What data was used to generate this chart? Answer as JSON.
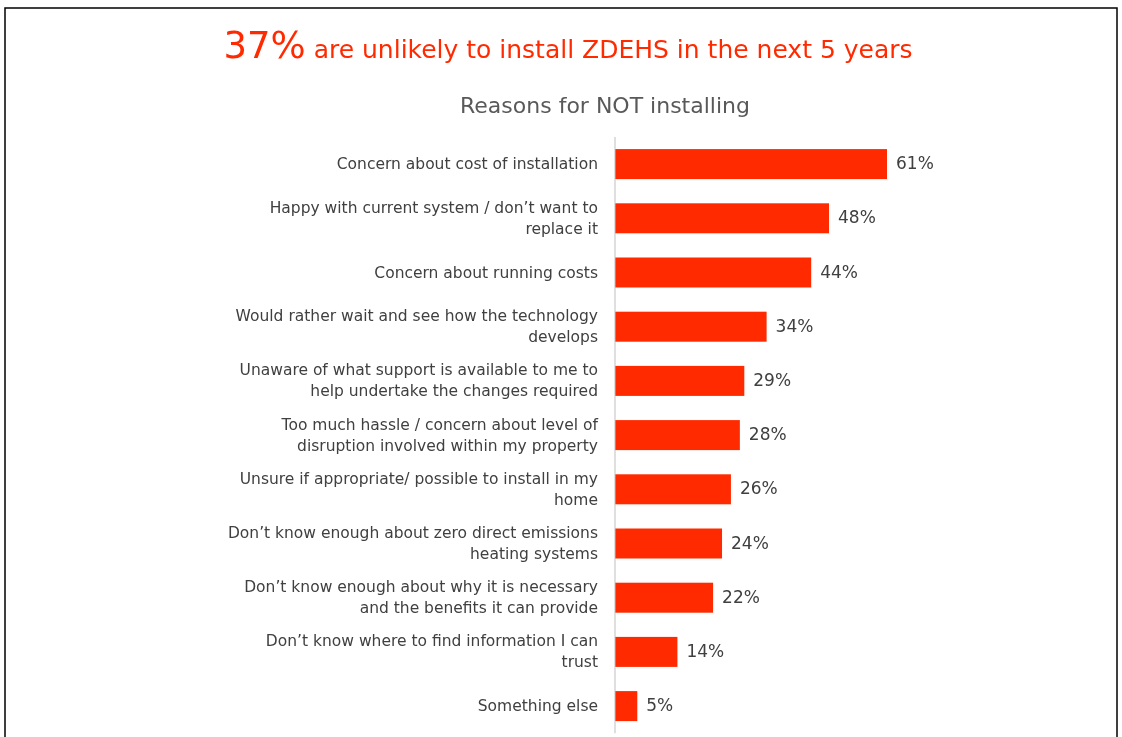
{
  "chart_data": {
    "type": "bar",
    "orientation": "horizontal",
    "title": "37% are unlikely to install ZDEHS in the next 5 years",
    "subtitle": "Reasons for NOT installing",
    "categories": [
      "Concern about cost of installation",
      "Happy with current system / don’t want to replace it",
      "Concern about running costs",
      "Would rather wait and see how the technology develops",
      "Unaware of what support is available to me to help undertake the changes required",
      "Too much hassle / concern about level of disruption involved within my property",
      "Unsure if appropriate/ possible to install in my home",
      "Don’t know enough about zero direct emissions heating systems",
      "Don’t know enough about why it is necessary and the benefits it can provide",
      "Don’t know where to find information I can trust",
      "Something else"
    ],
    "values": [
      61,
      48,
      44,
      34,
      29,
      28,
      26,
      24,
      22,
      14,
      5
    ],
    "value_labels": [
      "61%",
      "48%",
      "44%",
      "34%",
      "29%",
      "28%",
      "26%",
      "24%",
      "22%",
      "14%",
      "5%"
    ],
    "color": "#ff2a00"
  }
}
